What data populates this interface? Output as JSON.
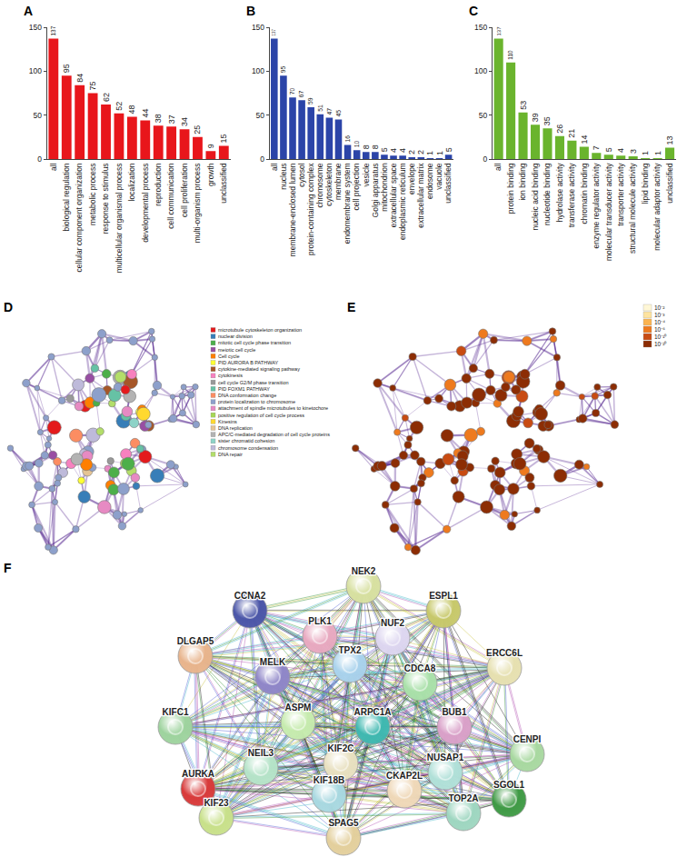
{
  "chart_data": [
    {
      "type": "bar",
      "title": "A",
      "categories": [
        "all",
        "biological regulation",
        "cellular component organization",
        "metabolic process",
        "response to stimulus",
        "multicellular organismal process",
        "localization",
        "developmental process",
        "reproduction",
        "cell communication",
        "cell proliferation",
        "multi-organism process",
        "growth",
        "unclassified"
      ],
      "values": [
        137,
        95,
        84,
        75,
        62,
        52,
        48,
        44,
        38,
        37,
        34,
        25,
        9,
        15
      ],
      "color": "#e8161b",
      "ylim": [
        0,
        150
      ],
      "yticks": [
        0,
        50,
        100,
        150
      ],
      "data_labels": true
    },
    {
      "type": "bar",
      "title": "B",
      "categories": [
        "all",
        "nucleus",
        "membrane-enclosed lumen",
        "cytosol",
        "protein-containing complex",
        "chromosome",
        "cytoskeleton",
        "membrane",
        "endomembrane system",
        "cell projection",
        "vesicle",
        "Golgi apparatus",
        "mitochondrion",
        "extracellular space",
        "endoplasmic reticulum",
        "envelope",
        "extracellular matrix",
        "endosome",
        "vacuole",
        "unclassified"
      ],
      "values": [
        137,
        95,
        70,
        67,
        59,
        51,
        47,
        45,
        16,
        10,
        8,
        8,
        5,
        4,
        4,
        2,
        2,
        1,
        1,
        5
      ],
      "color": "#2b44a8",
      "ylim": [
        0,
        150
      ],
      "yticks": [
        0,
        50,
        100,
        150
      ],
      "data_labels": true
    },
    {
      "type": "bar",
      "title": "C",
      "categories": [
        "all",
        "protein binding",
        "ion binding",
        "nucleic acid binding",
        "nucleotide binding",
        "hydrolase activity",
        "transferase activity",
        "chromatin binding",
        "enzyme regulator activity",
        "molecular transducer activity",
        "transporter activity",
        "structural molecule activity",
        "lipid binding",
        "molecular adaptor activity",
        "unclassified"
      ],
      "values": [
        137,
        110,
        53,
        39,
        35,
        26,
        21,
        14,
        7,
        5,
        4,
        3,
        1,
        1,
        13
      ],
      "color": "#6ab42d",
      "ylim": [
        0,
        150
      ],
      "yticks": [
        0,
        50,
        100,
        150
      ],
      "data_labels": true
    }
  ],
  "diagrams": {
    "D": {
      "title": "D",
      "legend": [
        {
          "label": "microtubule cytoskeleton organization",
          "color": "#e41a1c"
        },
        {
          "label": "nuclear division",
          "color": "#377eb8"
        },
        {
          "label": "mitotic cell cycle phase transition",
          "color": "#4daf4a"
        },
        {
          "label": "meiotic cell cycle",
          "color": "#984ea3"
        },
        {
          "label": "Cell cycle",
          "color": "#ff7f00"
        },
        {
          "label": "PID AURORA B PATHWAY",
          "color": "#ffff33"
        },
        {
          "label": "cytokine-mediated signaling pathway",
          "color": "#a65628"
        },
        {
          "label": "cytokinesis",
          "color": "#f781bf"
        },
        {
          "label": "cell cycle G2/M phase transition",
          "color": "#999999"
        },
        {
          "label": "PID FOXM1 PATHWAY",
          "color": "#66c2a5"
        },
        {
          "label": "DNA conformation change",
          "color": "#fc8d62"
        },
        {
          "label": "protein localization to chromosome",
          "color": "#8da0cb"
        },
        {
          "label": "attachment of spindle microtubules to kinetochore",
          "color": "#e78ac3"
        },
        {
          "label": "positive regulation of cell cycle process",
          "color": "#a6d854"
        },
        {
          "label": "Kinesins",
          "color": "#ffd92f"
        },
        {
          "label": "DNA replication",
          "color": "#e5c494"
        },
        {
          "label": "APC/C-mediated degradation of cell cycle proteins",
          "color": "#b3b3b3"
        },
        {
          "label": "sister chromatid cohesion",
          "color": "#8dd3c7"
        },
        {
          "label": "chromosome condensation",
          "color": "#bebada"
        },
        {
          "label": "DNA repair",
          "color": "#b3de69"
        }
      ]
    },
    "E": {
      "title": "E",
      "scale": [
        {
          "label": "10⁻²",
          "color": "#fff7d6"
        },
        {
          "label": "10⁻³",
          "color": "#fde3a0"
        },
        {
          "label": "10⁻⁴",
          "color": "#fbb450"
        },
        {
          "label": "10⁻⁶",
          "color": "#ee7a1e"
        },
        {
          "label": "10⁻¹⁰",
          "color": "#c84b12"
        },
        {
          "label": "10⁻²⁰",
          "color": "#8c2d04"
        }
      ]
    },
    "F": {
      "title": "F",
      "nodes": [
        {
          "label": "CCNA2",
          "color": "#4b56a8"
        },
        {
          "label": "NEK2",
          "color": "#d7e0a0"
        },
        {
          "label": "ESPL1",
          "color": "#c7c86a"
        },
        {
          "label": "NUF2",
          "color": "#ddd6f0"
        },
        {
          "label": "PLK1",
          "color": "#e8a9c0"
        },
        {
          "label": "DLGAP5",
          "color": "#e8b48c"
        },
        {
          "label": "TPX2",
          "color": "#a9d2ec"
        },
        {
          "label": "MELK",
          "color": "#8f86c8"
        },
        {
          "label": "ERCC6L",
          "color": "#e6e0b0"
        },
        {
          "label": "CDCA8",
          "color": "#a9e0a9"
        },
        {
          "label": "KIFC1",
          "color": "#9ed39e"
        },
        {
          "label": "ASPM",
          "color": "#c6ebae"
        },
        {
          "label": "ARPC1A",
          "color": "#3fb8b0"
        },
        {
          "label": "BUB1",
          "color": "#d9a0c8"
        },
        {
          "label": "CENPI",
          "color": "#a8d8a0"
        },
        {
          "label": "NEIL3",
          "color": "#b5e3c8"
        },
        {
          "label": "KIF2C",
          "color": "#e8e0c0"
        },
        {
          "label": "NUSAP1",
          "color": "#b0e0d8"
        },
        {
          "label": "SGOL1",
          "color": "#3f9a45"
        },
        {
          "label": "AURKA",
          "color": "#d83a3a"
        },
        {
          "label": "KIF18B",
          "color": "#a8d8e0"
        },
        {
          "label": "CKAP2L",
          "color": "#efd8b8"
        },
        {
          "label": "KIF23",
          "color": "#c8e08a"
        },
        {
          "label": "TOP2A",
          "color": "#9ed6c0"
        },
        {
          "label": "SPAG5",
          "color": "#e3cf9c"
        }
      ]
    }
  }
}
